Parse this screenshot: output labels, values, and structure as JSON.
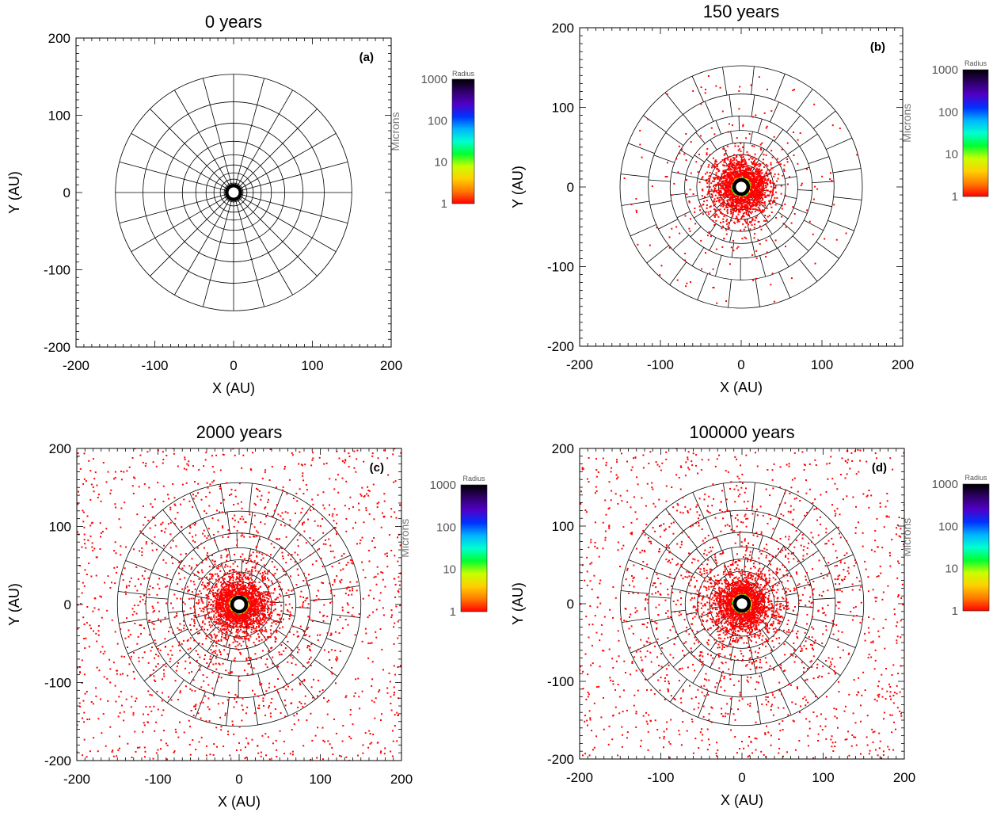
{
  "figure": {
    "colorbar": {
      "title": "Radius",
      "label": "Microns",
      "ticks": [
        "1000",
        "100",
        "10",
        "1"
      ],
      "scale": "log",
      "range": [
        1,
        1000
      ],
      "colors": [
        "#ff0000",
        "#ff7a00",
        "#ffd000",
        "#c8ff00",
        "#00ff30",
        "#00ffd0",
        "#00b4ff",
        "#0032ff",
        "#5000c8",
        "#30006a",
        "#000000"
      ]
    },
    "marker_color": "#ff0000"
  },
  "chart_data": [
    {
      "type": "scatter",
      "title": "0 years",
      "panel_label": "(a)",
      "xlabel": "X (AU)",
      "ylabel": "Y (AU)",
      "xlim": [
        -200,
        200
      ],
      "ylim": [
        -200,
        200
      ],
      "xticks": [
        -200,
        -100,
        0,
        100,
        200
      ],
      "yticks": [
        -200,
        -100,
        0,
        100,
        200
      ],
      "tick_labels": [
        "-200",
        "-100",
        "0",
        "100",
        "200"
      ],
      "grid": {
        "rings": [
          5,
          8,
          12,
          17,
          25,
          35,
          48,
          65,
          88,
          115,
          150
        ],
        "spokes": 24,
        "rotated": false
      },
      "particles": {
        "inner": 0,
        "mid": 0,
        "outer": 0,
        "field": 0
      }
    },
    {
      "type": "scatter",
      "title": "150 years",
      "panel_label": "(b)",
      "xlabel": "X (AU)",
      "ylabel": "Y (AU)",
      "xlim": [
        -200,
        200
      ],
      "ylim": [
        -200,
        200
      ],
      "xticks": [
        -200,
        -100,
        0,
        100,
        200
      ],
      "yticks": [
        -200,
        -100,
        0,
        100,
        200
      ],
      "tick_labels": [
        "-200",
        "-100",
        "0",
        "100",
        "200"
      ],
      "grid": {
        "rings": [
          12,
          20,
          28,
          40,
          55,
          70,
          88,
          115,
          150
        ],
        "spokes": 24,
        "rotated": true
      },
      "particles": {
        "inner": 1500,
        "mid": 450,
        "outer": 150,
        "field": 0
      }
    },
    {
      "type": "scatter",
      "title": "2000 years",
      "panel_label": "(c)",
      "xlabel": "X (AU)",
      "ylabel": "Y (AU)",
      "xlim": [
        -200,
        200
      ],
      "ylim": [
        -200,
        200
      ],
      "xticks": [
        -200,
        -100,
        0,
        100,
        200
      ],
      "yticks": [
        -200,
        -100,
        0,
        100,
        200
      ],
      "tick_labels": [
        "-200",
        "-100",
        "0",
        "100",
        "200"
      ],
      "grid": {
        "rings": [
          12,
          20,
          28,
          40,
          55,
          70,
          88,
          115,
          150
        ],
        "spokes": 24,
        "rotated": true
      },
      "particles": {
        "inner": 1300,
        "mid": 600,
        "outer": 300,
        "field": 1300
      }
    },
    {
      "type": "scatter",
      "title": "100000 years",
      "panel_label": "(d)",
      "xlabel": "X (AU)",
      "ylabel": "Y (AU)",
      "xlim": [
        -200,
        200
      ],
      "ylim": [
        -200,
        200
      ],
      "xticks": [
        -200,
        -100,
        0,
        100,
        200
      ],
      "yticks": [
        -200,
        -100,
        0,
        100,
        200
      ],
      "tick_labels": [
        "-200",
        "-100",
        "0",
        "100",
        "200"
      ],
      "grid": {
        "rings": [
          12,
          20,
          28,
          40,
          55,
          70,
          88,
          115,
          150
        ],
        "spokes": 24,
        "rotated": true
      },
      "particles": {
        "inner": 1300,
        "mid": 650,
        "outer": 350,
        "field": 1200
      }
    }
  ]
}
